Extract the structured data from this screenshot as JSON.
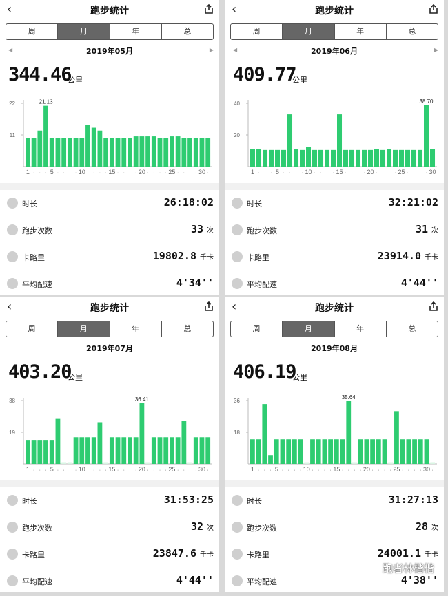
{
  "app": {
    "title": "跑步统计",
    "tabs": [
      "周",
      "月",
      "年",
      "总"
    ],
    "active_tab": "月",
    "unit_km": "公里",
    "bar_color": "#2ecc71"
  },
  "panels": [
    {
      "month": "2019年05月",
      "total": "344.46",
      "stats": [
        {
          "label": "时长",
          "value": "26:18:02",
          "unit": ""
        },
        {
          "label": "跑步次数",
          "value": "33",
          "unit": "次"
        },
        {
          "label": "卡路里",
          "value": "19802.8",
          "unit": "千卡"
        },
        {
          "label": "平均配速",
          "value": "4'34''",
          "unit": ""
        }
      ]
    },
    {
      "month": "2019年06月",
      "total": "409.77",
      "stats": [
        {
          "label": "时长",
          "value": "32:21:02",
          "unit": ""
        },
        {
          "label": "跑步次数",
          "value": "31",
          "unit": "次"
        },
        {
          "label": "卡路里",
          "value": "23914.0",
          "unit": "千卡"
        },
        {
          "label": "平均配速",
          "value": "4'44''",
          "unit": ""
        }
      ]
    },
    {
      "month": "2019年07月",
      "total": "403.20",
      "stats": [
        {
          "label": "时长",
          "value": "31:53:25",
          "unit": ""
        },
        {
          "label": "跑步次数",
          "value": "32",
          "unit": "次"
        },
        {
          "label": "卡路里",
          "value": "23847.6",
          "unit": "千卡"
        },
        {
          "label": "平均配速",
          "value": "4'44''",
          "unit": ""
        }
      ]
    },
    {
      "month": "2019年08月",
      "total": "406.19",
      "stats": [
        {
          "label": "时长",
          "value": "31:27:13",
          "unit": ""
        },
        {
          "label": "跑步次数",
          "value": "28",
          "unit": "次"
        },
        {
          "label": "卡路里",
          "value": "24001.1",
          "unit": "千卡"
        },
        {
          "label": "平均配速",
          "value": "4'38''",
          "unit": ""
        }
      ]
    }
  ],
  "watermark": "跑者林楷楷",
  "chart_data": [
    {
      "type": "bar",
      "x": [
        1,
        2,
        3,
        4,
        5,
        6,
        7,
        8,
        9,
        10,
        11,
        12,
        13,
        14,
        15,
        16,
        17,
        18,
        19,
        20,
        21,
        22,
        23,
        24,
        25,
        26,
        27,
        28,
        29,
        30,
        31
      ],
      "values": [
        10,
        10,
        12.5,
        21.13,
        10,
        10,
        10,
        10,
        10,
        10,
        14.5,
        13.5,
        12.5,
        10,
        10,
        10,
        10,
        10,
        10.5,
        10.5,
        10.5,
        10.5,
        10,
        10,
        10.5,
        10.5,
        10,
        10,
        10,
        10,
        10
      ],
      "yticks": [
        11,
        22
      ],
      "ylim": [
        0,
        22
      ],
      "xticks": [
        1,
        5,
        10,
        15,
        20,
        25,
        30
      ],
      "peak_label": "21.13"
    },
    {
      "type": "bar",
      "x": [
        1,
        2,
        3,
        4,
        5,
        6,
        7,
        8,
        9,
        10,
        11,
        12,
        13,
        14,
        15,
        16,
        17,
        18,
        19,
        20,
        21,
        22,
        23,
        24,
        25,
        26,
        27,
        28,
        29,
        30
      ],
      "values": [
        11,
        11,
        10.5,
        10.5,
        10.5,
        10.5,
        33,
        11,
        10.5,
        12.5,
        10.5,
        10.5,
        10.5,
        10.5,
        33,
        10.5,
        10.5,
        10.5,
        10.5,
        10.5,
        11,
        10.5,
        11,
        10.5,
        10.5,
        10.5,
        10.5,
        10.5,
        38.7,
        11
      ],
      "yticks": [
        20,
        40
      ],
      "ylim": [
        0,
        40
      ],
      "xticks": [
        1,
        5,
        10,
        15,
        20,
        25,
        30
      ],
      "peak_label": "38.70"
    },
    {
      "type": "bar",
      "x": [
        1,
        2,
        3,
        4,
        5,
        6,
        7,
        8,
        9,
        10,
        11,
        12,
        13,
        14,
        15,
        16,
        17,
        18,
        19,
        20,
        21,
        22,
        23,
        24,
        25,
        26,
        27,
        28,
        29,
        30,
        31
      ],
      "values": [
        14,
        14,
        14,
        14,
        14,
        27,
        0,
        0,
        16,
        16,
        16,
        16,
        25,
        0,
        16,
        16,
        16,
        16,
        16,
        36.41,
        0,
        16,
        16,
        16,
        16,
        16,
        26,
        0,
        16,
        16,
        16
      ],
      "yticks": [
        19,
        38
      ],
      "ylim": [
        0,
        38
      ],
      "xticks": [
        1,
        5,
        10,
        15,
        20,
        25,
        30
      ],
      "peak_label": "36.41"
    },
    {
      "type": "bar",
      "x": [
        1,
        2,
        3,
        4,
        5,
        6,
        7,
        8,
        9,
        10,
        11,
        12,
        13,
        14,
        15,
        16,
        17,
        18,
        19,
        20,
        21,
        22,
        23,
        24,
        25,
        26,
        27,
        28,
        29,
        30,
        31
      ],
      "values": [
        14,
        14,
        34,
        5,
        14,
        14,
        14,
        14,
        14,
        0,
        14,
        14,
        14,
        14,
        14,
        14,
        35.64,
        0,
        14,
        14,
        14,
        14,
        14,
        0,
        30,
        14,
        14,
        14,
        14,
        14,
        0
      ],
      "yticks": [
        18,
        36
      ],
      "ylim": [
        0,
        36
      ],
      "xticks": [
        1,
        5,
        10,
        15,
        20,
        25,
        30
      ],
      "peak_label": "35.64"
    }
  ]
}
